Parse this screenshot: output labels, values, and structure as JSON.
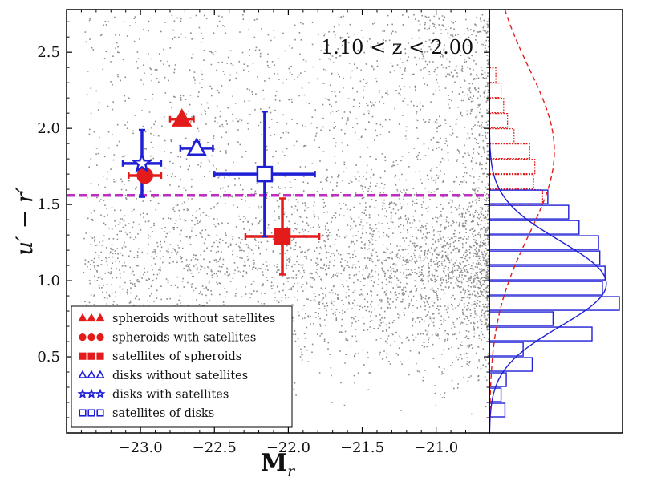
{
  "chart_data": {
    "type": "scatter",
    "title": "",
    "annotation": "1.10 < z < 2.00",
    "xlabel": "M",
    "xlabel_sub": "r",
    "ylabel": "u′ − r′",
    "xlim": [
      -23.5,
      -20.64
    ],
    "ylim": [
      0.0,
      2.78
    ],
    "xticks": [
      -23.0,
      -22.5,
      -22.0,
      -21.5,
      -21.0
    ],
    "xtick_labels": [
      "−23.0",
      "−22.5",
      "−22.0",
      "−21.5",
      "−21.0"
    ],
    "yticks": [
      0.5,
      1.0,
      1.5,
      2.0,
      2.5
    ],
    "ytick_labels": [
      "0.5",
      "1.0",
      "1.5",
      "2.0",
      "2.5"
    ],
    "divider_line": {
      "y": 1.56,
      "color": "#bf2fbf",
      "style": "dashed"
    },
    "background_points": {
      "description": "galaxy sample",
      "color": "#8c8c8c"
    },
    "points": [
      {
        "series": "spheroids without satellites",
        "marker": "triangle",
        "filled": true,
        "color": "#e31b1b",
        "x": -22.72,
        "y": 2.06,
        "xerr": 0.08,
        "yerr": 0.0
      },
      {
        "series": "spheroids with satellites",
        "marker": "circle",
        "filled": true,
        "color": "#e31b1b",
        "x": -22.97,
        "y": 1.69,
        "xerr": 0.11,
        "yerr": 0.0
      },
      {
        "series": "satellites of spheroids",
        "marker": "square",
        "filled": true,
        "color": "#e31b1b",
        "x": -22.04,
        "y": 1.29,
        "xerr": 0.25,
        "yerr": 0.25
      },
      {
        "series": "disks without satellites",
        "marker": "triangle",
        "filled": false,
        "color": "#1f1fd6",
        "x": -22.62,
        "y": 1.87,
        "xerr": 0.11,
        "yerr": 0.04
      },
      {
        "series": "disks with satellites",
        "marker": "star",
        "filled": false,
        "color": "#1f1fd6",
        "x": -22.99,
        "y": 1.77,
        "xerr": 0.13,
        "yerr": 0.22
      },
      {
        "series": "satellites of disks",
        "marker": "square",
        "filled": false,
        "color": "#1f1fd6",
        "x": -22.16,
        "y": 1.7,
        "xerr": 0.34,
        "yerr": 0.41
      }
    ],
    "legend": {
      "placement": "lower-left",
      "entries": [
        {
          "label": "spheroids without satellites",
          "marker": "triangle",
          "filled": true,
          "color": "#e31b1b"
        },
        {
          "label": "spheroids with satellites",
          "marker": "circle",
          "filled": true,
          "color": "#e31b1b"
        },
        {
          "label": "satellites of spheroids",
          "marker": "square",
          "filled": true,
          "color": "#e31b1b"
        },
        {
          "label": "disks without satellites",
          "marker": "triangle",
          "filled": false,
          "color": "#1f1fd6"
        },
        {
          "label": "disks with satellites",
          "marker": "star",
          "filled": false,
          "color": "#1f1fd6"
        },
        {
          "label": "satellites of disks",
          "marker": "square",
          "filled": false,
          "color": "#1f1fd6"
        }
      ]
    },
    "side_histogram": {
      "orientation": "horizontal",
      "bin_width": 0.1,
      "count_max": 1.0,
      "red_bins": [
        {
          "y": 2.3,
          "count": 0.05
        },
        {
          "y": 2.2,
          "count": 0.09
        },
        {
          "y": 2.1,
          "count": 0.11
        },
        {
          "y": 2.0,
          "count": 0.14
        },
        {
          "y": 1.9,
          "count": 0.19
        },
        {
          "y": 1.8,
          "count": 0.31
        },
        {
          "y": 1.7,
          "count": 0.35
        },
        {
          "y": 1.6,
          "count": 0.34
        },
        {
          "y": 1.5,
          "count": 0.41
        }
      ],
      "blue_bins": [
        {
          "y": 1.5,
          "count": 0.45
        },
        {
          "y": 1.4,
          "count": 0.61
        },
        {
          "y": 1.3,
          "count": 0.69
        },
        {
          "y": 1.2,
          "count": 0.84
        },
        {
          "y": 1.1,
          "count": 0.85
        },
        {
          "y": 1.0,
          "count": 0.89
        },
        {
          "y": 0.9,
          "count": 0.87
        },
        {
          "y": 0.8,
          "count": 1.0
        },
        {
          "y": 0.7,
          "count": 0.49
        },
        {
          "y": 0.6,
          "count": 0.79
        },
        {
          "y": 0.5,
          "count": 0.26
        },
        {
          "y": 0.4,
          "count": 0.33
        },
        {
          "y": 0.3,
          "count": 0.13
        },
        {
          "y": 0.2,
          "count": 0.09
        },
        {
          "y": 0.1,
          "count": 0.12
        }
      ],
      "blue_curve": {
        "mean": 0.98,
        "sigma": 0.28,
        "amplitude": 0.9,
        "style": "solid"
      },
      "red_curve": {
        "mean": 1.85,
        "sigma": 0.55,
        "amplitude": 0.5,
        "style": "dashed"
      }
    }
  }
}
